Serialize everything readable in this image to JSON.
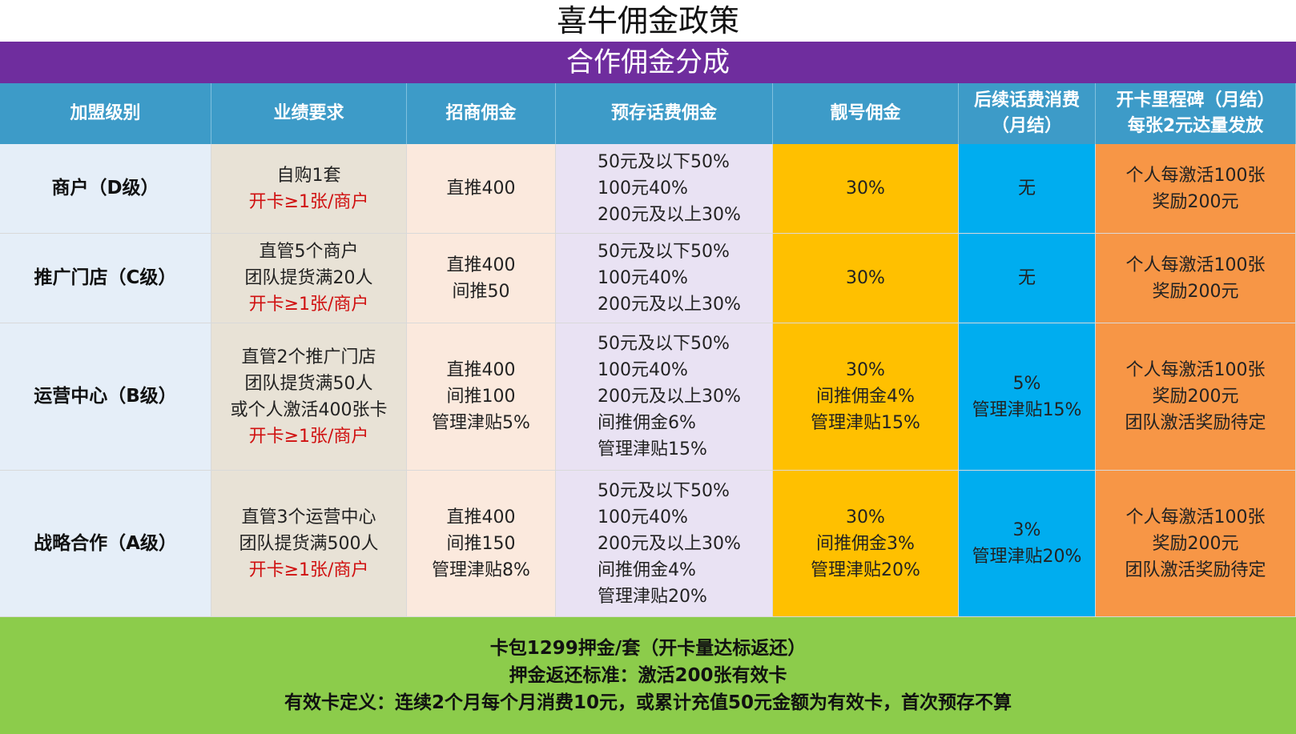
{
  "title": "喜牛佣金政策",
  "subtitle": "合作佣金分成",
  "headers": {
    "level": "加盟级别",
    "performance": "业绩要求",
    "recruit": "招商佣金",
    "prestore": "预存话费佣金",
    "number": "靓号佣金",
    "fee_line1": "后续话费消费",
    "fee_line2": "（月结）",
    "milestone_line1": "开卡里程碑（月结）",
    "milestone_line2": "每张2元达量发放"
  },
  "rows": [
    {
      "level": "商户（D级）",
      "performance": [
        "自购1套"
      ],
      "performance_red": "开卡≥1张/商户",
      "recruit": [
        "直推400"
      ],
      "prestore": [
        "50元及以下50%",
        "100元40%",
        "200元及以上30%"
      ],
      "number": [
        "30%"
      ],
      "fee": [
        "无"
      ],
      "milestone": [
        "个人每激活100张",
        "奖励200元"
      ]
    },
    {
      "level": "推广门店（C级）",
      "performance": [
        "直管5个商户",
        "团队提货满20人"
      ],
      "performance_red": "开卡≥1张/商户",
      "recruit": [
        "直推400",
        "间推50"
      ],
      "prestore": [
        "50元及以下50%",
        "100元40%",
        "200元及以上30%"
      ],
      "number": [
        "30%"
      ],
      "fee": [
        "无"
      ],
      "milestone": [
        "个人每激活100张",
        "奖励200元"
      ]
    },
    {
      "level": "运营中心（B级）",
      "performance": [
        "直管2个推广门店",
        "团队提货满50人",
        "或个人激活400张卡"
      ],
      "performance_red": "开卡≥1张/商户",
      "recruit": [
        "直推400",
        "间推100",
        "管理津贴5%"
      ],
      "prestore": [
        "50元及以下50%",
        "100元40%",
        "200元及以上30%",
        "间推佣金6%",
        "管理津贴15%"
      ],
      "number": [
        "30%",
        "间推佣金4%",
        "管理津贴15%"
      ],
      "fee": [
        "5%",
        "管理津贴15%"
      ],
      "milestone": [
        "个人每激活100张",
        "奖励200元",
        "团队激活奖励待定"
      ]
    },
    {
      "level": "战略合作（A级）",
      "performance": [
        "直管3个运营中心",
        "团队提货满500人"
      ],
      "performance_red": "开卡≥1张/商户",
      "recruit": [
        "直推400",
        "间推150",
        "管理津贴8%"
      ],
      "prestore": [
        "50元及以下50%",
        "100元40%",
        "200元及以上30%",
        "间推佣金4%",
        "管理津贴20%"
      ],
      "number": [
        "30%",
        "间推佣金3%",
        "管理津贴20%"
      ],
      "fee": [
        "3%",
        "管理津贴20%"
      ],
      "milestone": [
        "个人每激活100张",
        "奖励200元",
        "团队激活奖励待定"
      ]
    }
  ],
  "footer": [
    "卡包1299押金/套（开卡量达标返还）",
    "押金返还标准：激活200张有效卡",
    "有效卡定义：连续2个月每个月消费10元，或累计充值50元金额为有效卡，首次预存不算"
  ],
  "colors": {
    "purple_band": "#6f2d9e",
    "header_blue": "#3d9bc8",
    "level_bg": "#e5eef8",
    "performance_bg": "#e8e2d6",
    "recruit_bg": "#fbe9dd",
    "prestore_bg": "#e9e2f3",
    "number_bg": "#ffc000",
    "fee_bg": "#00adef",
    "milestone_bg": "#f79646",
    "footer_green": "#8ccc4b",
    "red_text": "#d01010"
  }
}
